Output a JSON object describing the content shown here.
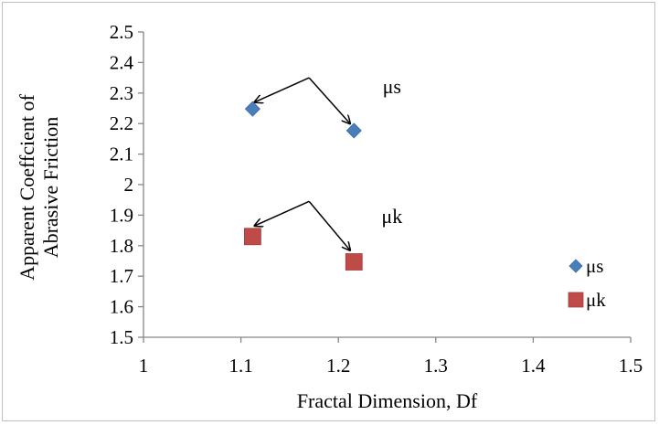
{
  "chart_data": {
    "type": "scatter",
    "xlabel": "Fractal Dimension, Df",
    "ylabel_lines": [
      "Apparent Coeffcient of",
      "Abrasive Friction"
    ],
    "xlim": [
      1,
      1.5
    ],
    "ylim": [
      1.5,
      2.5
    ],
    "x_ticks": [
      "1",
      "1.1",
      "1.2",
      "1.3",
      "1.4",
      "1.5"
    ],
    "y_ticks": [
      "1.5",
      "1.6",
      "1.7",
      "1.8",
      "1.9",
      "2",
      "2.1",
      "2.2",
      "2.3",
      "2.4",
      "2.5"
    ],
    "grid": false,
    "legend_position": "right",
    "series": [
      {
        "name": "μs",
        "marker": "diamond",
        "color": "#4a7ebb",
        "x": [
          1.112,
          1.216
        ],
        "y": [
          2.248,
          2.177
        ]
      },
      {
        "name": "μk",
        "marker": "square",
        "color": "#be4b48",
        "x": [
          1.112,
          1.216
        ],
        "y": [
          1.83,
          1.747
        ]
      }
    ],
    "annotations": [
      {
        "text": "μs",
        "x": 1.255,
        "y": 2.3,
        "arrow_origin": [
          1.17,
          2.35
        ],
        "arrow_targets": [
          [
            1.114,
            2.27
          ],
          [
            1.212,
            2.2
          ]
        ]
      },
      {
        "text": "μk",
        "x": 1.255,
        "y": 1.875,
        "arrow_origin": [
          1.17,
          1.945
        ],
        "arrow_targets": [
          [
            1.114,
            1.865
          ],
          [
            1.212,
            1.785
          ]
        ]
      }
    ]
  }
}
